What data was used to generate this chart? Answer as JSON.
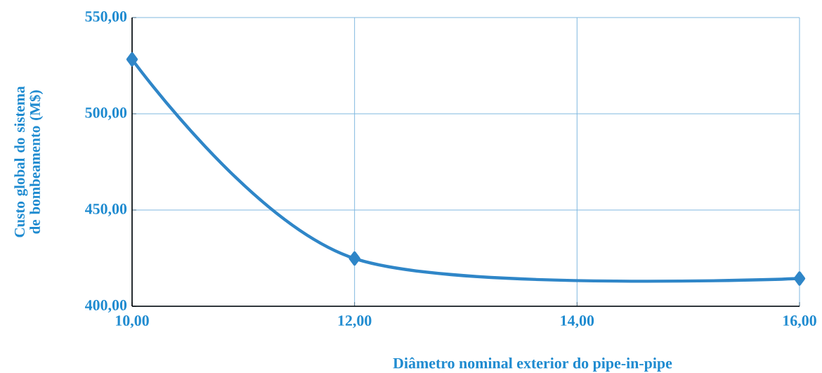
{
  "chart_data": {
    "type": "line",
    "xlabel": "Diâmetro nominal exterior do pipe-in-pipe",
    "ylabel": "Custo global do sistema de bombeamento (M$)",
    "x": [
      10,
      12,
      16
    ],
    "series": [
      {
        "color": "#2f86c8",
        "values": [
          528.3,
          424.8,
          414.4
        ]
      }
    ],
    "xlim": [
      10,
      16
    ],
    "xticks": [
      {
        "value": 10,
        "label": "10,00"
      },
      {
        "value": 12,
        "label": "12,00"
      },
      {
        "value": 14,
        "label": "14,00"
      },
      {
        "value": 16,
        "label": "16,00"
      }
    ],
    "ylim": [
      400,
      550
    ],
    "yticks": [
      {
        "value": 400,
        "label": "400,00"
      },
      {
        "value": 450,
        "label": "450,00"
      },
      {
        "value": 500,
        "label": "500,00"
      },
      {
        "value": 550,
        "label": "550,00"
      }
    ],
    "grid": true,
    "marker": "diamond",
    "line_style": "solid"
  }
}
